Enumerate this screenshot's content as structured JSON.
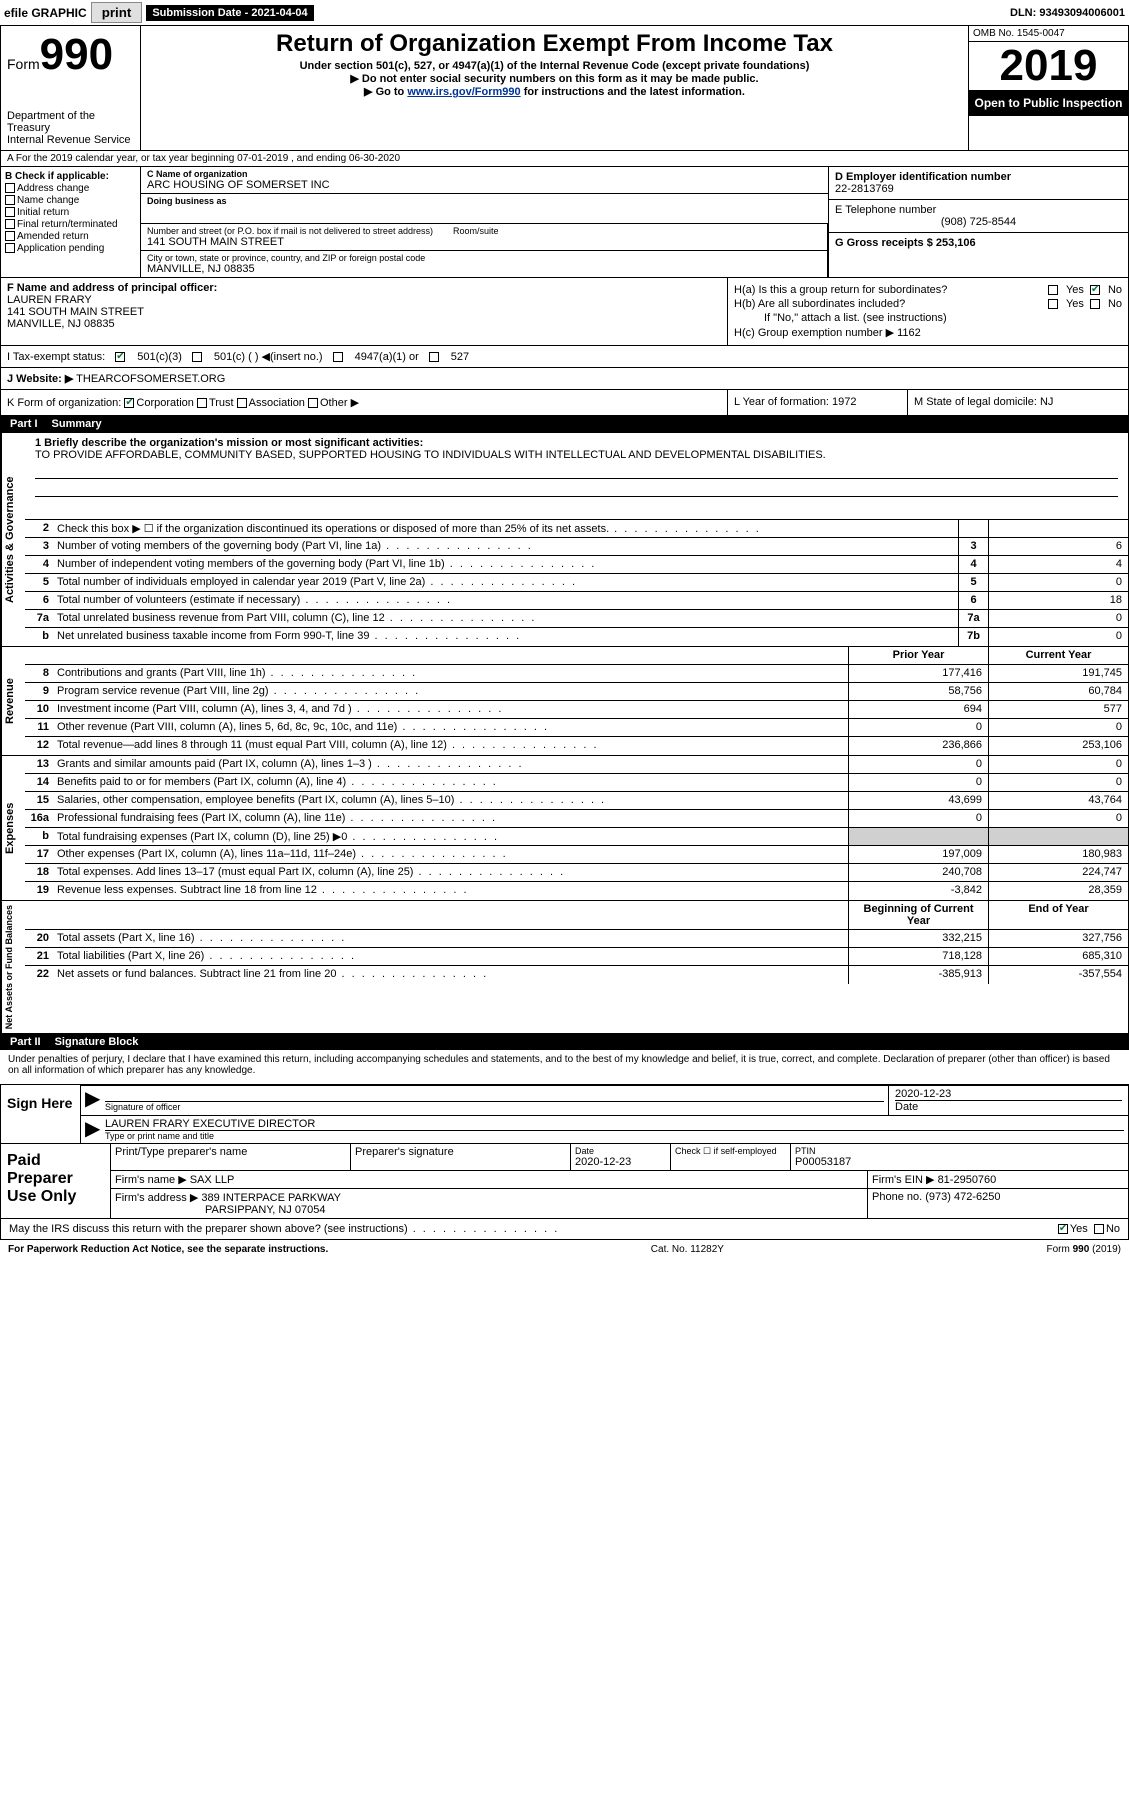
{
  "topbar": {
    "efile": "efile GRAPHIC",
    "print": "print",
    "submission": "Submission Date - 2021-04-04",
    "dln": "DLN: 93493094006001"
  },
  "header": {
    "form_label": "Form",
    "form_num": "990",
    "dept": "Department of the Treasury\nInternal Revenue Service",
    "title": "Return of Organization Exempt From Income Tax",
    "sub1": "Under section 501(c), 527, or 4947(a)(1) of the Internal Revenue Code (except private foundations)",
    "sub2": "▶ Do not enter social security numbers on this form as it may be made public.",
    "sub3_pre": "▶ Go to ",
    "sub3_link": "www.irs.gov/Form990",
    "sub3_post": " for instructions and the latest information.",
    "omb": "OMB No. 1545-0047",
    "year": "2019",
    "open": "Open to Public Inspection"
  },
  "line_a": "A For the 2019 calendar year, or tax year beginning 07-01-2019   , and ending 06-30-2020",
  "box_b": {
    "title": "B Check if applicable:",
    "items": [
      "Address change",
      "Name change",
      "Initial return",
      "Final return/terminated",
      "Amended return",
      "Application pending"
    ]
  },
  "org": {
    "name_lbl": "C Name of organization",
    "name": "ARC HOUSING OF SOMERSET INC",
    "dba_lbl": "Doing business as",
    "addr_lbl": "Number and street (or P.O. box if mail is not delivered to street address)",
    "room_lbl": "Room/suite",
    "addr": "141 SOUTH MAIN STREET",
    "city_lbl": "City or town, state or province, country, and ZIP or foreign postal code",
    "city": "MANVILLE, NJ  08835",
    "ein_lbl": "D Employer identification number",
    "ein": "22-2813769",
    "phone_lbl": "E Telephone number",
    "phone": "(908) 725-8544",
    "gross_lbl": "G Gross receipts $ 253,106"
  },
  "officer": {
    "lbl": "F  Name and address of principal officer:",
    "name": "LAUREN FRARY",
    "addr1": "141 SOUTH MAIN STREET",
    "addr2": "MANVILLE, NJ  08835",
    "ha": "H(a)  Is this a group return for subordinates?",
    "hb": "H(b)  Are all subordinates included?",
    "hb_note": "If \"No,\" attach a list. (see instructions)",
    "hc": "H(c)  Group exemption number ▶   1162",
    "yes": "Yes",
    "no": "No"
  },
  "tax_status": {
    "lbl": "I   Tax-exempt status:",
    "opt1": "501(c)(3)",
    "opt2": "501(c) (  ) ◀(insert no.)",
    "opt3": "4947(a)(1) or",
    "opt4": "527"
  },
  "website": {
    "lbl": "J   Website: ▶",
    "val": " THEARCOFSOMERSET.ORG"
  },
  "kform": {
    "lbl": "K Form of organization:",
    "opts": [
      "Corporation",
      "Trust",
      "Association",
      "Other ▶"
    ],
    "year_lbl": "L Year of formation: 1972",
    "state_lbl": "M State of legal domicile: NJ"
  },
  "part1": {
    "num": "Part I",
    "title": "Summary"
  },
  "mission": {
    "q": "1 Briefly describe the organization's mission or most significant activities:",
    "text": "TO PROVIDE AFFORDABLE, COMMUNITY BASED, SUPPORTED HOUSING TO INDIVIDUALS WITH INTELLECTUAL AND DEVELOPMENTAL DISABILITIES."
  },
  "gov_rows": [
    {
      "n": "2",
      "d": "Check this box ▶ ☐  if the organization discontinued its operations or disposed of more than 25% of its net assets.",
      "box": "",
      "v": ""
    },
    {
      "n": "3",
      "d": "Number of voting members of the governing body (Part VI, line 1a)",
      "box": "3",
      "v": "6"
    },
    {
      "n": "4",
      "d": "Number of independent voting members of the governing body (Part VI, line 1b)",
      "box": "4",
      "v": "4"
    },
    {
      "n": "5",
      "d": "Total number of individuals employed in calendar year 2019 (Part V, line 2a)",
      "box": "5",
      "v": "0"
    },
    {
      "n": "6",
      "d": "Total number of volunteers (estimate if necessary)",
      "box": "6",
      "v": "18"
    },
    {
      "n": "7a",
      "d": "Total unrelated business revenue from Part VIII, column (C), line 12",
      "box": "7a",
      "v": "0"
    },
    {
      "n": "b",
      "d": "Net unrelated business taxable income from Form 990-T, line 39",
      "box": "7b",
      "v": "0"
    }
  ],
  "fin_hdr": {
    "py": "Prior Year",
    "cy": "Current Year"
  },
  "rev_rows": [
    {
      "n": "8",
      "d": "Contributions and grants (Part VIII, line 1h)",
      "py": "177,416",
      "cy": "191,745"
    },
    {
      "n": "9",
      "d": "Program service revenue (Part VIII, line 2g)",
      "py": "58,756",
      "cy": "60,784"
    },
    {
      "n": "10",
      "d": "Investment income (Part VIII, column (A), lines 3, 4, and 7d )",
      "py": "694",
      "cy": "577"
    },
    {
      "n": "11",
      "d": "Other revenue (Part VIII, column (A), lines 5, 6d, 8c, 9c, 10c, and 11e)",
      "py": "0",
      "cy": "0"
    },
    {
      "n": "12",
      "d": "Total revenue—add lines 8 through 11 (must equal Part VIII, column (A), line 12)",
      "py": "236,866",
      "cy": "253,106"
    }
  ],
  "exp_rows": [
    {
      "n": "13",
      "d": "Grants and similar amounts paid (Part IX, column (A), lines 1–3 )",
      "py": "0",
      "cy": "0"
    },
    {
      "n": "14",
      "d": "Benefits paid to or for members (Part IX, column (A), line 4)",
      "py": "0",
      "cy": "0"
    },
    {
      "n": "15",
      "d": "Salaries, other compensation, employee benefits (Part IX, column (A), lines 5–10)",
      "py": "43,699",
      "cy": "43,764"
    },
    {
      "n": "16a",
      "d": "Professional fundraising fees (Part IX, column (A), line 11e)",
      "py": "0",
      "cy": "0"
    },
    {
      "n": "b",
      "d": "Total fundraising expenses (Part IX, column (D), line 25) ▶0",
      "py": "",
      "cy": "",
      "shaded": true
    },
    {
      "n": "17",
      "d": "Other expenses (Part IX, column (A), lines 11a–11d, 11f–24e)",
      "py": "197,009",
      "cy": "180,983"
    },
    {
      "n": "18",
      "d": "Total expenses. Add lines 13–17 (must equal Part IX, column (A), line 25)",
      "py": "240,708",
      "cy": "224,747"
    },
    {
      "n": "19",
      "d": "Revenue less expenses. Subtract line 18 from line 12",
      "py": "-3,842",
      "cy": "28,359"
    }
  ],
  "na_hdr": {
    "py": "Beginning of Current Year",
    "cy": "End of Year"
  },
  "na_rows": [
    {
      "n": "20",
      "d": "Total assets (Part X, line 16)",
      "py": "332,215",
      "cy": "327,756"
    },
    {
      "n": "21",
      "d": "Total liabilities (Part X, line 26)",
      "py": "718,128",
      "cy": "685,310"
    },
    {
      "n": "22",
      "d": "Net assets or fund balances. Subtract line 21 from line 20",
      "py": "-385,913",
      "cy": "-357,554"
    }
  ],
  "vert": {
    "gov": "Activities & Governance",
    "rev": "Revenue",
    "exp": "Expenses",
    "na": "Net Assets or Fund Balances"
  },
  "part2": {
    "num": "Part II",
    "title": "Signature Block"
  },
  "sig": {
    "decl": "Under penalties of perjury, I declare that I have examined this return, including accompanying schedules and statements, and to the best of my knowledge and belief, it is true, correct, and complete. Declaration of preparer (other than officer) is based on all information of which preparer has any knowledge.",
    "sign_here": "Sign Here",
    "sig_lbl": "Signature of officer",
    "date": "2020-12-23",
    "date_lbl": "Date",
    "name": "LAUREN FRARY  EXECUTIVE DIRECTOR",
    "name_lbl": "Type or print name and title"
  },
  "prep": {
    "lbl": "Paid Preparer Use Only",
    "c1": "Print/Type preparer's name",
    "c2": "Preparer's signature",
    "c3": "Date",
    "c3v": "2020-12-23",
    "c4": "Check ☐ if self-employed",
    "c5": "PTIN",
    "c5v": "P00053187",
    "firm_lbl": "Firm's name    ▶",
    "firm": "SAX LLP",
    "ein_lbl": "Firm's EIN ▶",
    "ein": "81-2950760",
    "addr_lbl": "Firm's address ▶",
    "addr1": "389 INTERPACE PARKWAY",
    "addr2": "PARSIPPANY, NJ  07054",
    "phone_lbl": "Phone no.",
    "phone": "(973) 472-6250"
  },
  "discuss": "May the IRS discuss this return with the preparer shown above? (see instructions)",
  "footer": {
    "left": "For Paperwork Reduction Act Notice, see the separate instructions.",
    "mid": "Cat. No. 11282Y",
    "right": "Form 990 (2019)"
  },
  "colors": {
    "black": "#000000",
    "link": "#003399",
    "check": "#0a7a3a",
    "shade": "#d0d0d0"
  }
}
